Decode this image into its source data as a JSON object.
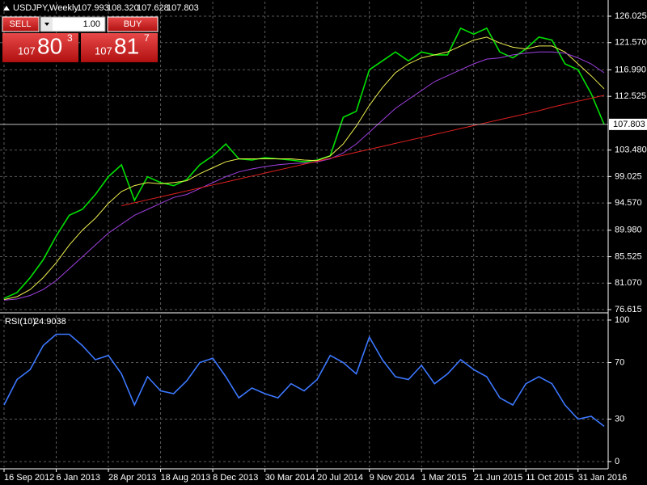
{
  "header": {
    "symbol": "USDJPY,Weekly",
    "ohlc": [
      107.993,
      {
        "value": 108.32,
        "label": "108.320"
      },
      107.628,
      107.803
    ]
  },
  "trade_panel": {
    "sell_label": "SELL",
    "buy_label": "BUY",
    "volume": {
      "value": 1,
      "label": "1.00"
    },
    "sell_price": [
      "107",
      "80",
      "3"
    ],
    "buy_price": [
      "107",
      "81",
      "7"
    ]
  },
  "chart_data": [
    {
      "type": "line",
      "ylim": [
        76.21,
        128.475
      ],
      "yticks": [
        126.025,
        {
          "value": 121.57,
          "label": "121.570"
        },
        {
          "value": 116.99,
          "label": "116.990"
        },
        112.525,
        {
          "value": 103.48,
          "label": "103.480"
        },
        99.025,
        {
          "value": 94.57,
          "label": "94.570"
        },
        {
          "value": 89.98,
          "label": "89.980"
        },
        85.525,
        {
          "value": 81.07,
          "label": "81.070"
        },
        76.615
      ],
      "last_price": 107.803,
      "grid": true,
      "series": [
        {
          "color": "#00e000",
          "values": [
            78.5,
            79.5,
            82,
            85,
            89,
            92.5,
            93.5,
            96,
            99,
            101,
            95,
            99,
            98,
            97.5,
            98.5,
            101,
            102.5,
            104.5,
            102,
            101.8,
            102.2,
            102,
            101.8,
            101.5,
            101.8,
            102.5,
            109,
            110,
            117,
            118.5,
            120,
            118.5,
            120,
            119.5,
            119.5,
            124,
            123,
            124,
            120,
            119,
            120.5,
            122.5,
            122,
            118,
            117,
            113,
            107.8
          ]
        },
        {
          "color": "#f0f050",
          "values": [
            78.3,
            78.8,
            80,
            82,
            84.5,
            87.5,
            90,
            92,
            94.5,
            96.5,
            97.5,
            98,
            97.8,
            98,
            98.3,
            99.5,
            100.5,
            101.5,
            102,
            102,
            102,
            102,
            102,
            101.8,
            101.7,
            102.5,
            104.5,
            107.5,
            111,
            114,
            116.5,
            118,
            119,
            119.5,
            120,
            121,
            122,
            122.5,
            121.5,
            120.8,
            120.5,
            121,
            121,
            120,
            118,
            116,
            113.8
          ]
        },
        {
          "color": "#a040e0",
          "values": [
            78.2,
            78.4,
            79,
            80,
            81.5,
            83.5,
            85.5,
            87.5,
            89.5,
            91,
            92.5,
            93.5,
            94.5,
            95.5,
            96,
            97,
            98,
            99,
            99.8,
            100.3,
            100.7,
            101,
            101.2,
            101.3,
            101.5,
            102,
            103,
            104.5,
            106.5,
            108.5,
            110.5,
            112,
            113.5,
            115,
            116,
            117,
            118,
            118.8,
            119,
            119.5,
            119.8,
            120,
            120,
            119.8,
            119,
            118,
            116.5
          ]
        },
        {
          "color": "#e02020",
          "values": [
            null,
            null,
            null,
            null,
            null,
            null,
            null,
            null,
            null,
            94.1,
            94.6,
            95.1,
            95.6,
            96.1,
            96.6,
            97.1,
            97.6,
            98.1,
            98.6,
            99.1,
            99.6,
            100.1,
            100.6,
            101.1,
            101.6,
            102.1,
            102.6,
            103.1,
            103.6,
            104.1,
            104.6,
            105.1,
            105.6,
            106.1,
            106.6,
            107.1,
            107.6,
            108.1,
            108.6,
            109.1,
            109.6,
            110.1,
            110.7,
            111.2,
            111.7,
            112.2,
            112.7
          ]
        }
      ]
    },
    {
      "type": "line",
      "label": "RSI(10)",
      "current": 24.9038,
      "ylim": [
        -4,
        103.4
      ],
      "yticks": [
        0,
        30,
        70,
        100
      ],
      "grid": true,
      "categories": [
        "16 Sep 2012",
        null,
        null,
        null,
        "6 Jan 2013",
        null,
        null,
        null,
        "28 Apr 2013",
        null,
        null,
        null,
        "18 Aug 2013",
        null,
        null,
        null,
        "8 Dec 2013",
        null,
        null,
        null,
        "30 Mar 2014",
        null,
        null,
        null,
        "20 Jul 2014",
        null,
        null,
        null,
        "9 Nov 2014",
        null,
        null,
        null,
        "1 Mar 2015",
        null,
        null,
        null,
        "21 Jun 2015",
        null,
        null,
        null,
        "11 Oct 2015",
        null,
        null,
        null,
        "31 Jan 2016",
        null,
        null
      ],
      "series": [
        {
          "color": "#3c78ff",
          "values": [
            40,
            58,
            65,
            82,
            90,
            90,
            82,
            72,
            75,
            62,
            40,
            60,
            50,
            48,
            57,
            70,
            73,
            60,
            45,
            52,
            48,
            45,
            55,
            50,
            58,
            75,
            70,
            62,
            88,
            72,
            60,
            58,
            68,
            55,
            62,
            72,
            65,
            60,
            45,
            40,
            55,
            60,
            55,
            40,
            30,
            32,
            24.9
          ]
        }
      ]
    }
  ]
}
